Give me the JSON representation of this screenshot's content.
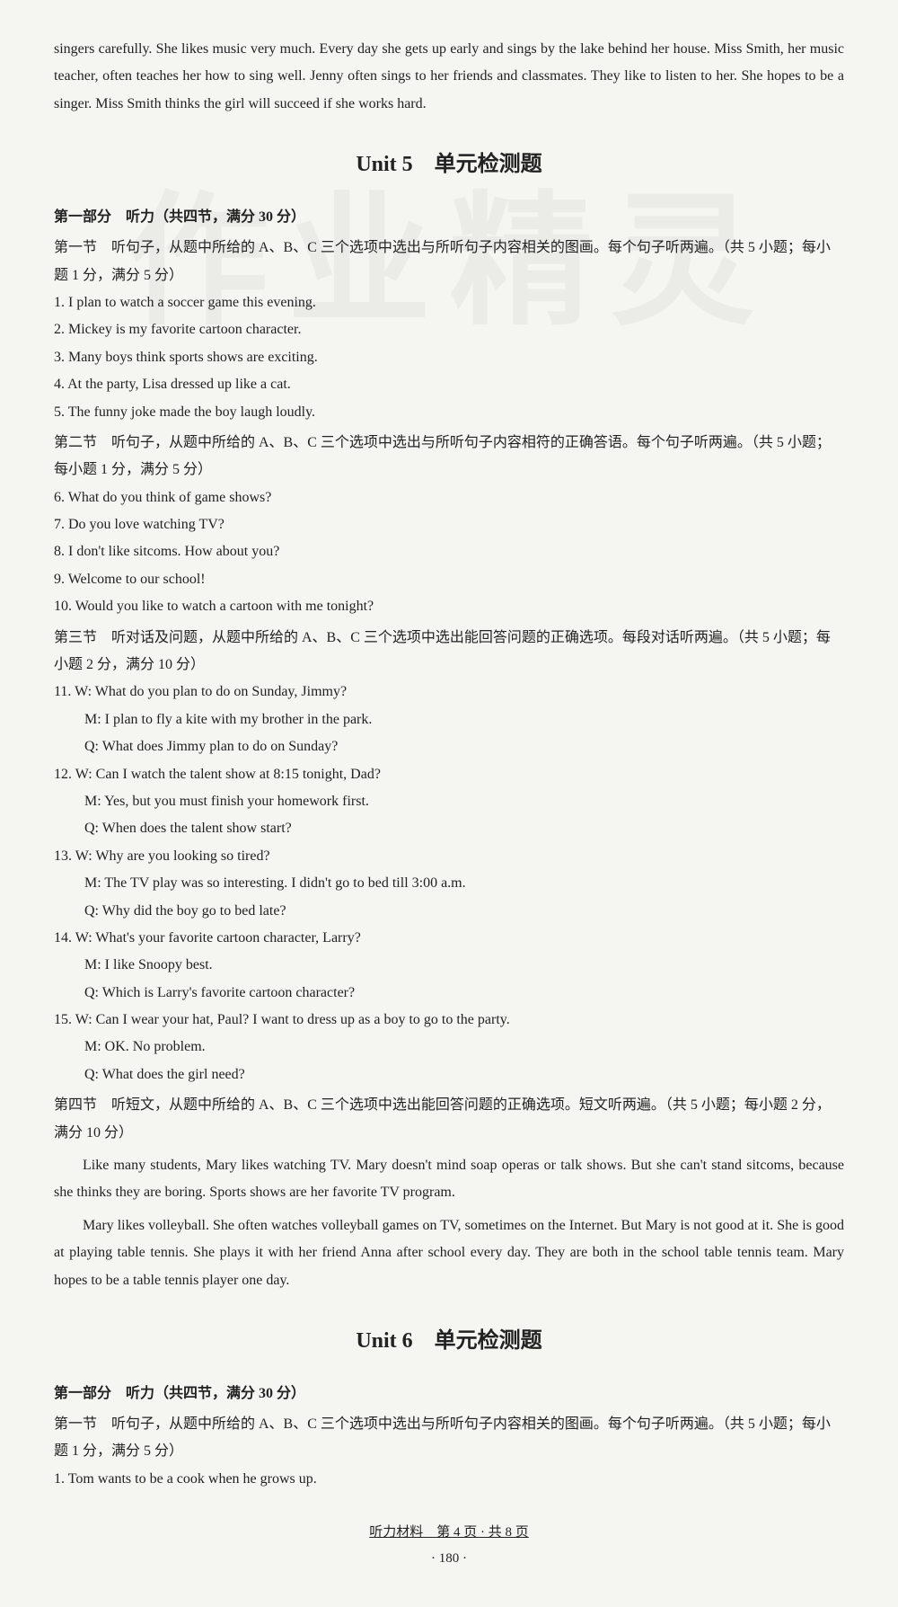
{
  "watermark_text": "作业精灵",
  "intro_paragraph": "singers carefully. She likes music very much. Every day she gets up early and sings by the lake behind her house. Miss Smith, her music teacher, often teaches her how to sing well. Jenny often sings to her friends and classmates. They like to listen to her. She hopes to be a singer. Miss Smith thinks the girl will succeed if she works hard.",
  "unit5": {
    "title": "Unit 5　单元检测题",
    "part_header": "第一部分　听力（共四节，满分 30 分）",
    "section1": {
      "label": "第一节",
      "instruction": "听句子，从题中所给的 A、B、C 三个选项中选出与所听句子内容相关的图画。每个句子听两遍。（共 5 小题；每小题 1 分，满分 5 分）",
      "items": [
        "1. I plan to watch a soccer game this evening.",
        "2. Mickey is my favorite cartoon character.",
        "3. Many boys think sports shows are exciting.",
        "4. At the party, Lisa dressed up like a cat.",
        "5. The funny joke made the boy laugh loudly."
      ]
    },
    "section2": {
      "label": "第二节",
      "instruction": "听句子，从题中所给的 A、B、C 三个选项中选出与所听句子内容相符的正确答语。每个句子听两遍。（共 5 小题；每小题 1 分，满分 5 分）",
      "items": [
        "6. What do you think of game shows?",
        "7. Do you love watching TV?",
        "8. I don't like sitcoms. How about you?",
        "9. Welcome to our school!",
        "10. Would you like to watch a cartoon with me tonight?"
      ]
    },
    "section3": {
      "label": "第三节",
      "instruction": "听对话及问题，从题中所给的 A、B、C 三个选项中选出能回答问题的正确选项。每段对话听两遍。（共 5 小题；每小题 2 分，满分 10 分）",
      "dialogs": [
        {
          "num": "11.",
          "lines": [
            "W: What do you plan to do on Sunday, Jimmy?",
            "M: I plan to fly a kite with my brother in the park.",
            "Q: What does Jimmy plan to do on Sunday?"
          ]
        },
        {
          "num": "12.",
          "lines": [
            "W: Can I watch the talent show at 8:15 tonight, Dad?",
            "M: Yes, but you must finish your homework first.",
            "Q: When does the talent show start?"
          ]
        },
        {
          "num": "13.",
          "lines": [
            "W: Why are you looking so tired?",
            "M: The TV play was so interesting. I didn't go to bed till 3:00 a.m.",
            "Q: Why did the boy go to bed late?"
          ]
        },
        {
          "num": "14.",
          "lines": [
            "W: What's your favorite cartoon character, Larry?",
            "M: I like Snoopy best.",
            "Q: Which is Larry's favorite cartoon character?"
          ]
        },
        {
          "num": "15.",
          "lines": [
            "W: Can I wear your hat, Paul? I want to dress up as a boy to go to the party.",
            "M: OK. No problem.",
            "Q: What does the girl need?"
          ]
        }
      ]
    },
    "section4": {
      "label": "第四节",
      "instruction": "听短文，从题中所给的 A、B、C 三个选项中选出能回答问题的正确选项。短文听两遍。（共 5 小题；每小题 2 分，满分 10 分）",
      "passages": [
        "Like many students, Mary likes watching TV. Mary doesn't mind soap operas or talk shows. But she can't stand sitcoms, because she thinks they are boring. Sports shows are her favorite TV program.",
        "Mary likes volleyball. She often watches volleyball games on TV, sometimes on the Internet. But Mary is not good at it. She is good at playing table tennis. She plays it with her friend Anna after school every day. They are both in the school table tennis team. Mary hopes to be a table tennis player one day."
      ]
    }
  },
  "unit6": {
    "title": "Unit 6　单元检测题",
    "part_header": "第一部分　听力（共四节，满分 30 分）",
    "section1": {
      "label": "第一节",
      "instruction": "听句子，从题中所给的 A、B、C 三个选项中选出与所听句子内容相关的图画。每个句子听两遍。（共 5 小题；每小题 1 分，满分 5 分）",
      "items": [
        "1. Tom wants to be a cook when he grows up."
      ]
    }
  },
  "footer_text": "听力材料　第 4 页 · 共 8 页",
  "page_number": "· 180 ·"
}
